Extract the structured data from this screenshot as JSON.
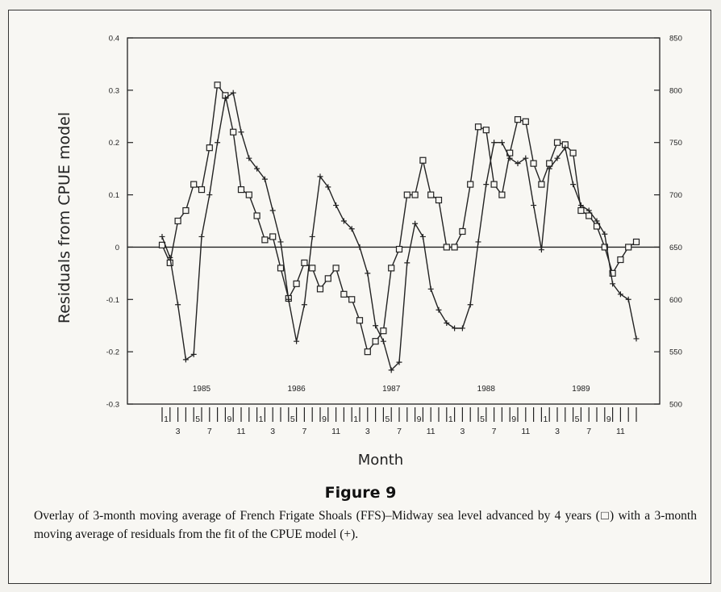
{
  "figure": {
    "title": "Figure 9",
    "caption": "Overlay of 3-month moving average of French Frigate Shoals (FFS)–Midway sea level advanced by 4 years (□) with a 3-month moving average of residuals from the fit of the CPUE model (+)."
  },
  "chart_data": {
    "type": "line",
    "xlabel": "Month",
    "ylabel": "Residuals from CPUE model",
    "ylim": [
      -0.3,
      0.4
    ],
    "y_ticks": [
      "-0.3",
      "-0.2",
      "-0.1",
      "0",
      "0.1",
      "0.2",
      "0.3",
      "0.4"
    ],
    "y2lim": [
      500,
      850
    ],
    "y2_ticks": [
      "500",
      "550",
      "600",
      "650",
      "700",
      "750",
      "800",
      "850"
    ],
    "x_ticks_top": [
      "1",
      "5",
      "9",
      "1",
      "5",
      "9",
      "1",
      "5",
      "9",
      "1",
      "5",
      "9",
      "1",
      "5",
      "9"
    ],
    "x_ticks_bottom": [
      "3",
      "7",
      "11",
      "3",
      "7",
      "11",
      "3",
      "7",
      "11",
      "3",
      "7",
      "11",
      "3",
      "7",
      "11"
    ],
    "year_labels": [
      "1985",
      "1986",
      "1987",
      "1988",
      "1989"
    ],
    "zero_line": true,
    "series": [
      {
        "marker": "square",
        "axis": "right",
        "start_month_index": 0,
        "values": [
          652,
          635,
          675,
          685,
          710,
          705,
          745,
          805,
          795,
          760,
          705,
          700,
          680,
          657,
          660,
          630,
          601,
          615,
          635,
          630,
          610,
          620,
          630,
          605,
          600,
          580,
          550,
          560,
          570,
          630,
          648,
          700,
          700,
          733,
          700,
          695,
          650,
          650,
          665,
          710,
          765,
          762,
          710,
          700,
          740,
          772,
          770,
          730,
          710,
          730,
          750,
          748,
          740,
          685,
          680,
          670,
          650,
          625,
          638,
          650,
          655
        ]
      },
      {
        "marker": "plus",
        "axis": "left",
        "start_month_index": 0,
        "values": [
          0.02,
          -0.02,
          -0.11,
          -0.215,
          -0.205,
          0.02,
          0.1,
          0.2,
          0.285,
          0.295,
          0.22,
          0.17,
          0.15,
          0.13,
          0.07,
          0.01,
          -0.1,
          -0.18,
          -0.11,
          0.02,
          0.135,
          0.115,
          0.08,
          0.05,
          0.035,
          0.0,
          -0.05,
          -0.15,
          -0.18,
          -0.235,
          -0.22,
          -0.03,
          0.045,
          0.02,
          -0.08,
          -0.12,
          -0.145,
          -0.155,
          -0.155,
          -0.11,
          0.01,
          0.12,
          0.2,
          0.2,
          0.17,
          0.16,
          0.17,
          0.08,
          -0.005,
          0.15,
          0.17,
          0.19,
          0.12,
          0.08,
          0.07,
          0.05,
          0.025,
          -0.07,
          -0.09,
          -0.1,
          -0.175
        ]
      }
    ]
  }
}
